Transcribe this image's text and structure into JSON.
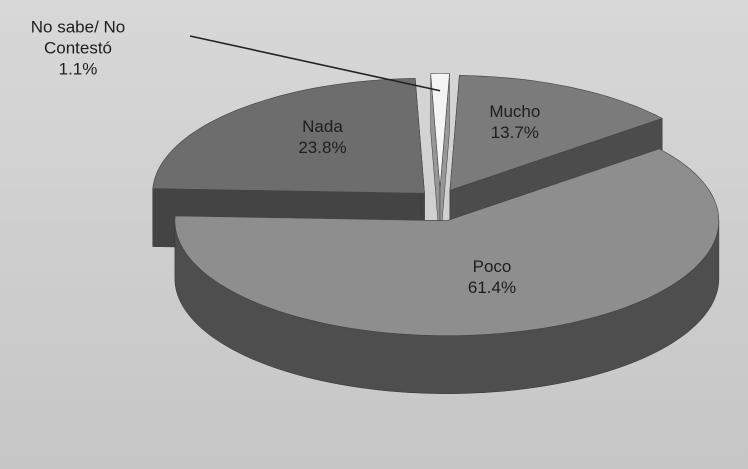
{
  "chart_data": {
    "type": "pie",
    "categories": [
      "Mucho",
      "Poco",
      "Nada",
      "No sabe/ No Contestó"
    ],
    "values": [
      13.7,
      61.4,
      23.8,
      1.1
    ],
    "value_labels": [
      "13.7%",
      "61.4%",
      "23.8%",
      "1.1%"
    ],
    "colors": [
      "#7b7b7b",
      "#8e8e8e",
      "#6d6d6d",
      "#f4f4f4"
    ],
    "three_d": true,
    "exploded": true
  }
}
